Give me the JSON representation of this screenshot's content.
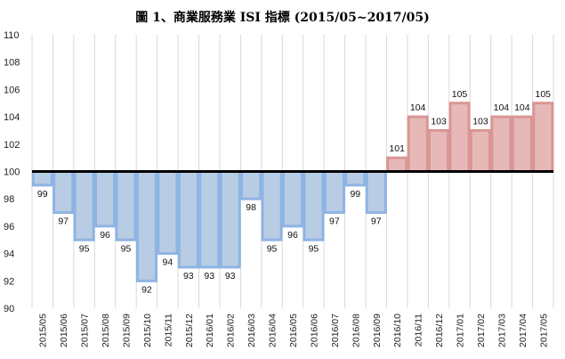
{
  "chart_data": {
    "type": "bar",
    "title": "圖 1、商業服務業 ISI 指標 (2015/05~2017/05)",
    "xlabel": "",
    "ylabel": "",
    "ylim": [
      90,
      110
    ],
    "yticks": [
      90,
      92,
      94,
      96,
      98,
      100,
      102,
      104,
      106,
      108,
      110
    ],
    "baseline": 100,
    "grid": "vertical",
    "legend": "none",
    "colors": {
      "below_fill": "#b8cce4",
      "below_edge": "#8eb4e3",
      "above_fill": "#e6b9b8",
      "above_edge": "#d99694",
      "baseline": "#000000",
      "grid": "#d9d9d9"
    },
    "categories": [
      "2015/05",
      "2015/06",
      "2015/07",
      "2015/08",
      "2015/09",
      "2015/10",
      "2015/11",
      "2015/12",
      "2016/01",
      "2016/02",
      "2016/03",
      "2016/04",
      "2016/05",
      "2016/06",
      "2016/07",
      "2016/08",
      "2016/09",
      "2016/10",
      "2016/11",
      "2016/12",
      "2017/01",
      "2017/02",
      "2017/03",
      "2017/04",
      "2017/05"
    ],
    "values": [
      99,
      97,
      95,
      96,
      95,
      92,
      94,
      93,
      93,
      93,
      98,
      95,
      96,
      95,
      97,
      99,
      97,
      101,
      104,
      103,
      105,
      103,
      104,
      104,
      105
    ]
  }
}
